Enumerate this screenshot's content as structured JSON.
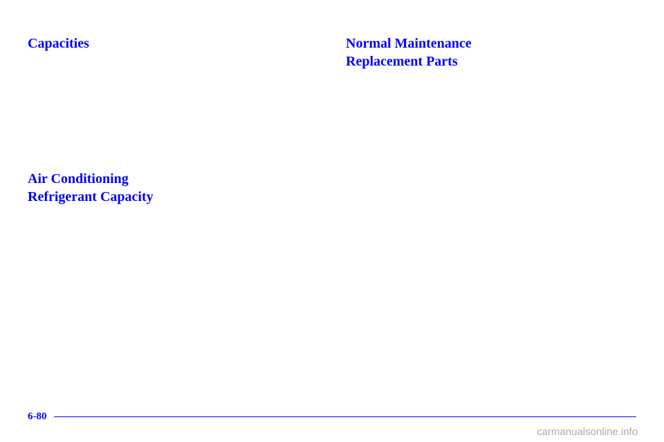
{
  "left": {
    "heading1": "Capacities",
    "heading2_line1": "Air Conditioning",
    "heading2_line2": "Refrigerant Capacity"
  },
  "right": {
    "heading1_line1": "Normal Maintenance",
    "heading1_line2": "Replacement Parts"
  },
  "footer": {
    "page_number": "6-80",
    "watermark": "carmanualsonline.info"
  }
}
